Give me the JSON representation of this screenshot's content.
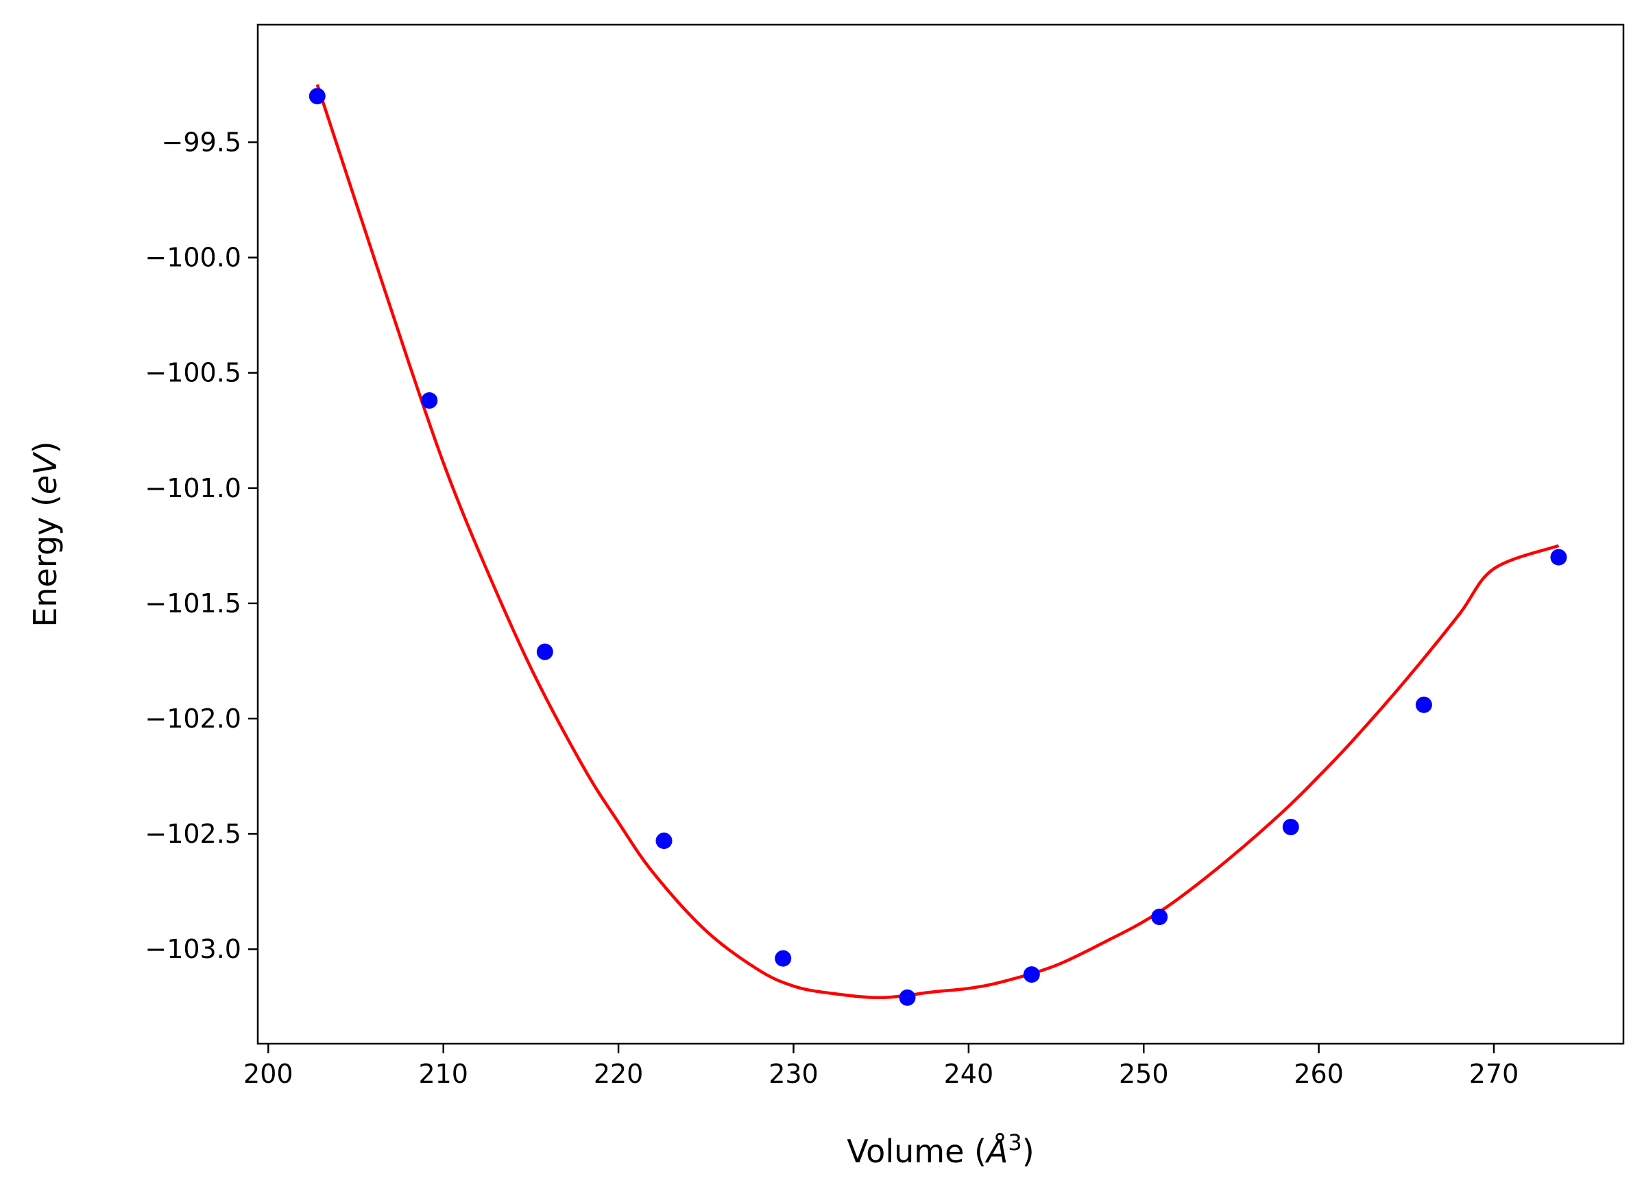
{
  "chart_data": {
    "type": "scatter",
    "xlabel_main": "Volume (",
    "xlabel_unit": "Å",
    "xlabel_sup": "3",
    "xlabel_close": ")",
    "ylabel_main": "Energy (",
    "ylabel_unit": "eV",
    "ylabel_close": ")",
    "xlim": [
      199.4,
      277.4
    ],
    "ylim": [
      -103.41,
      -98.99
    ],
    "xticks": [
      200,
      210,
      220,
      230,
      240,
      250,
      260,
      270
    ],
    "xtick_labels": [
      "200",
      "210",
      "220",
      "230",
      "240",
      "250",
      "260",
      "270"
    ],
    "yticks": [
      -99.5,
      -100.0,
      -100.5,
      -101.0,
      -101.5,
      -102.0,
      -102.5,
      -103.0
    ],
    "ytick_labels": [
      "−99.5",
      "−100.0",
      "−100.5",
      "−101.0",
      "−101.5",
      "−102.0",
      "−102.5",
      "−103.0"
    ],
    "grid": false,
    "series": [
      {
        "kind": "points",
        "color": "#0000ff",
        "x": [
          202.8,
          209.2,
          215.8,
          222.6,
          229.4,
          236.5,
          243.6,
          250.9,
          258.4,
          266.0,
          273.7
        ],
        "y": [
          -99.3,
          -100.62,
          -101.71,
          -102.53,
          -103.04,
          -103.21,
          -103.11,
          -102.86,
          -102.47,
          -101.94,
          -101.3
        ]
      },
      {
        "kind": "fit-curve",
        "color": "#ff0000",
        "x": [
          202.8,
          205,
          208,
          210,
          212,
          215,
          218,
          220,
          222,
          225,
          228,
          230,
          232,
          235,
          238,
          240,
          242,
          245,
          248,
          250,
          252,
          255,
          258,
          260,
          262,
          265,
          268,
          270,
          273.7
        ],
        "y": [
          -99.25,
          -99.76,
          -100.45,
          -100.89,
          -101.27,
          -101.78,
          -102.21,
          -102.45,
          -102.67,
          -102.92,
          -103.09,
          -103.16,
          -103.19,
          -103.21,
          -103.185,
          -103.17,
          -103.14,
          -103.07,
          -102.96,
          -102.88,
          -102.78,
          -102.6,
          -102.4,
          -102.25,
          -102.09,
          -101.83,
          -101.55,
          -101.35,
          -101.25
        ]
      }
    ]
  }
}
